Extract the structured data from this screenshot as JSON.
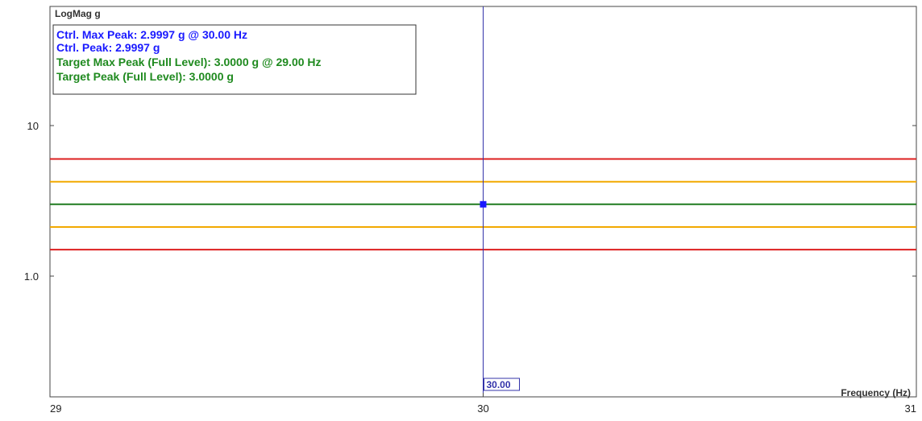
{
  "chart_data": {
    "type": "line",
    "ylabel": "LogMag g",
    "xlabel": "Frequency (Hz)",
    "xlim": [
      29,
      31
    ],
    "ylim": [
      0.1,
      35
    ],
    "y_scale": "log",
    "x_ticks": [
      {
        "value": 29,
        "label": "29"
      },
      {
        "value": 30,
        "label": "30"
      },
      {
        "value": 31,
        "label": "31"
      }
    ],
    "y_ticks": [
      {
        "value": 10,
        "label": "10"
      },
      {
        "value": 1,
        "label": "1.0"
      }
    ],
    "grid": false,
    "legend_position": "top-left",
    "legend": [
      {
        "text": "Ctrl. Max Peak: 2.9997 g @ 30.00 Hz",
        "color": "#1a1aff"
      },
      {
        "text": "Ctrl. Peak: 2.9997 g",
        "color": "#1a1aff"
      },
      {
        "text": "Target Max Peak (Full Level): 3.0000 g @ 29.00 Hz",
        "color": "#1f8a1f"
      },
      {
        "text": "Target Peak (Full Level): 3.0000 g",
        "color": "#1f8a1f"
      }
    ],
    "series": [
      {
        "color": "#dd1f1f",
        "x": [
          29,
          31
        ],
        "y": [
          6.0,
          6.0
        ]
      },
      {
        "color": "#f2a900",
        "x": [
          29,
          31
        ],
        "y": [
          4.24,
          4.24
        ]
      },
      {
        "color": "#1f7a1f",
        "x": [
          29,
          31
        ],
        "y": [
          3.0,
          3.0
        ]
      },
      {
        "color": "#f2a900",
        "x": [
          29,
          31
        ],
        "y": [
          2.12,
          2.12
        ]
      },
      {
        "color": "#dd1f1f",
        "x": [
          29,
          31
        ],
        "y": [
          1.5,
          1.5
        ]
      }
    ],
    "control_points": [
      {
        "x": 30.0,
        "y": 2.9997,
        "color": "#1a1aff"
      }
    ],
    "cursor": {
      "x": 30.0,
      "label": "30.00",
      "color": "#3333aa"
    }
  }
}
